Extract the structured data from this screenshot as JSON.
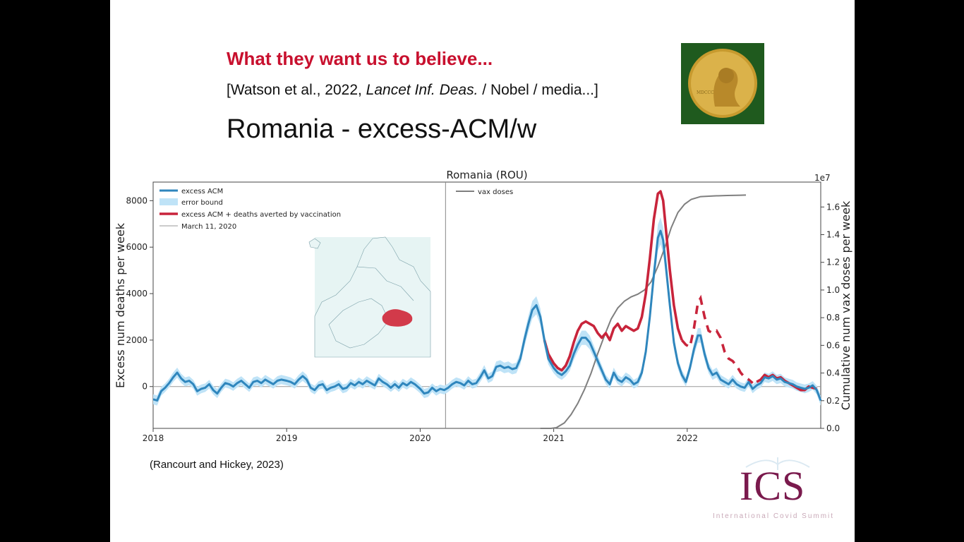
{
  "slide": {
    "headline": "What they want us to believe...",
    "citation_prefix": "[Watson et al., 2022, ",
    "citation_italic": "Lancet Inf. Deas.",
    "citation_suffix": " / Nobel / media...]",
    "title": "Romania  -  excess-ACM/w",
    "source": "(Rancourt and Hickey, 2023)",
    "logo_text": "ICS",
    "logo_tagline": "International Covid Summit"
  },
  "colors": {
    "excess": "#2f86bd",
    "band": "#bfe3f7",
    "averted": "#c8243b",
    "vax": "#7f7f7f",
    "headline": "#c8102e",
    "logo": "#7a1a4d"
  },
  "chart_data": {
    "type": "line",
    "title": "Romania (ROU)",
    "ylabel": "Excess num deaths per week",
    "y2label": "Cumulative num vax doses per week",
    "y2_offset_label": "1e7",
    "x_ticks": [
      "2018",
      "2019",
      "2020",
      "2021",
      "2022"
    ],
    "y_ticks": [
      0,
      2000,
      4000,
      6000,
      8000
    ],
    "y2_ticks": [
      "0.0",
      "0.2",
      "0.4",
      "0.6",
      "0.8",
      "1.0",
      "1.2",
      "1.4",
      "1.6"
    ],
    "xlim": [
      2018.0,
      2023.0
    ],
    "ylim": [
      -1800,
      8800
    ],
    "y2lim": [
      0,
      17800000
    ],
    "vline": 2020.19,
    "legend_left": [
      "excess ACM",
      "error bound",
      "excess ACM + deaths averted by vaccination",
      "March 11, 2020"
    ],
    "legend_right": [
      "vax doses"
    ],
    "series": [
      {
        "name": "excess ACM",
        "axis": "left",
        "points": [
          [
            2018.0,
            -550
          ],
          [
            2018.03,
            -600
          ],
          [
            2018.06,
            -200
          ],
          [
            2018.09,
            -50
          ],
          [
            2018.12,
            150
          ],
          [
            2018.15,
            400
          ],
          [
            2018.18,
            600
          ],
          [
            2018.21,
            350
          ],
          [
            2018.24,
            200
          ],
          [
            2018.27,
            250
          ],
          [
            2018.3,
            100
          ],
          [
            2018.33,
            -200
          ],
          [
            2018.36,
            -100
          ],
          [
            2018.39,
            -50
          ],
          [
            2018.42,
            100
          ],
          [
            2018.45,
            -150
          ],
          [
            2018.48,
            -300
          ],
          [
            2018.51,
            -50
          ],
          [
            2018.54,
            150
          ],
          [
            2018.57,
            100
          ],
          [
            2018.6,
            0
          ],
          [
            2018.63,
            150
          ],
          [
            2018.66,
            250
          ],
          [
            2018.69,
            100
          ],
          [
            2018.72,
            -50
          ],
          [
            2018.75,
            200
          ],
          [
            2018.78,
            250
          ],
          [
            2018.81,
            150
          ],
          [
            2018.84,
            300
          ],
          [
            2018.87,
            200
          ],
          [
            2018.9,
            100
          ],
          [
            2018.93,
            250
          ],
          [
            2018.96,
            300
          ],
          [
            2019.0,
            250
          ],
          [
            2019.03,
            200
          ],
          [
            2019.06,
            100
          ],
          [
            2019.09,
            300
          ],
          [
            2019.12,
            450
          ],
          [
            2019.15,
            300
          ],
          [
            2019.18,
            -50
          ],
          [
            2019.21,
            -150
          ],
          [
            2019.24,
            50
          ],
          [
            2019.27,
            100
          ],
          [
            2019.3,
            -150
          ],
          [
            2019.33,
            -50
          ],
          [
            2019.36,
            0
          ],
          [
            2019.39,
            100
          ],
          [
            2019.42,
            -100
          ],
          [
            2019.45,
            -50
          ],
          [
            2019.48,
            150
          ],
          [
            2019.51,
            50
          ],
          [
            2019.54,
            200
          ],
          [
            2019.57,
            100
          ],
          [
            2019.6,
            250
          ],
          [
            2019.63,
            150
          ],
          [
            2019.66,
            50
          ],
          [
            2019.69,
            350
          ],
          [
            2019.72,
            200
          ],
          [
            2019.75,
            100
          ],
          [
            2019.78,
            -50
          ],
          [
            2019.81,
            100
          ],
          [
            2019.84,
            -50
          ],
          [
            2019.87,
            150
          ],
          [
            2019.9,
            50
          ],
          [
            2019.93,
            200
          ],
          [
            2019.96,
            100
          ],
          [
            2020.0,
            -100
          ],
          [
            2020.03,
            -300
          ],
          [
            2020.06,
            -250
          ],
          [
            2020.09,
            -50
          ],
          [
            2020.12,
            -200
          ],
          [
            2020.15,
            -100
          ],
          [
            2020.18,
            -150
          ],
          [
            2020.21,
            -50
          ],
          [
            2020.24,
            100
          ],
          [
            2020.27,
            200
          ],
          [
            2020.3,
            150
          ],
          [
            2020.33,
            50
          ],
          [
            2020.36,
            250
          ],
          [
            2020.39,
            100
          ],
          [
            2020.42,
            150
          ],
          [
            2020.45,
            400
          ],
          [
            2020.48,
            700
          ],
          [
            2020.51,
            350
          ],
          [
            2020.54,
            450
          ],
          [
            2020.57,
            850
          ],
          [
            2020.6,
            900
          ],
          [
            2020.63,
            800
          ],
          [
            2020.66,
            850
          ],
          [
            2020.69,
            750
          ],
          [
            2020.72,
            800
          ],
          [
            2020.75,
            1200
          ],
          [
            2020.78,
            2000
          ],
          [
            2020.81,
            2700
          ],
          [
            2020.84,
            3300
          ],
          [
            2020.87,
            3500
          ],
          [
            2020.9,
            3000
          ],
          [
            2020.93,
            2000
          ],
          [
            2020.96,
            1200
          ],
          [
            2021.0,
            800
          ],
          [
            2021.03,
            600
          ],
          [
            2021.06,
            500
          ],
          [
            2021.09,
            650
          ],
          [
            2021.12,
            900
          ],
          [
            2021.15,
            1400
          ],
          [
            2021.18,
            1800
          ],
          [
            2021.21,
            2100
          ],
          [
            2021.24,
            2100
          ],
          [
            2021.27,
            1900
          ],
          [
            2021.3,
            1500
          ],
          [
            2021.33,
            1100
          ],
          [
            2021.36,
            700
          ],
          [
            2021.39,
            300
          ],
          [
            2021.42,
            100
          ],
          [
            2021.45,
            600
          ],
          [
            2021.48,
            300
          ],
          [
            2021.51,
            200
          ],
          [
            2021.54,
            400
          ],
          [
            2021.57,
            300
          ],
          [
            2021.6,
            100
          ],
          [
            2021.63,
            200
          ],
          [
            2021.66,
            600
          ],
          [
            2021.69,
            1500
          ],
          [
            2021.72,
            3000
          ],
          [
            2021.75,
            4800
          ],
          [
            2021.78,
            6400
          ],
          [
            2021.8,
            6700
          ],
          [
            2021.82,
            6300
          ],
          [
            2021.84,
            5200
          ],
          [
            2021.87,
            3500
          ],
          [
            2021.9,
            1900
          ],
          [
            2021.93,
            1000
          ],
          [
            2021.96,
            500
          ],
          [
            2021.99,
            200
          ],
          [
            2022.02,
            800
          ],
          [
            2022.05,
            1600
          ],
          [
            2022.08,
            2200
          ],
          [
            2022.1,
            2200
          ],
          [
            2022.13,
            1400
          ],
          [
            2022.16,
            800
          ],
          [
            2022.19,
            500
          ],
          [
            2022.22,
            600
          ],
          [
            2022.25,
            300
          ],
          [
            2022.28,
            200
          ],
          [
            2022.31,
            100
          ],
          [
            2022.34,
            300
          ],
          [
            2022.37,
            100
          ],
          [
            2022.4,
            0
          ],
          [
            2022.43,
            -50
          ],
          [
            2022.46,
            200
          ],
          [
            2022.49,
            -100
          ],
          [
            2022.52,
            50
          ],
          [
            2022.55,
            150
          ],
          [
            2022.58,
            400
          ],
          [
            2022.61,
            350
          ],
          [
            2022.64,
            450
          ],
          [
            2022.67,
            300
          ],
          [
            2022.7,
            350
          ],
          [
            2022.73,
            200
          ],
          [
            2022.76,
            150
          ],
          [
            2022.79,
            100
          ],
          [
            2022.82,
            0
          ],
          [
            2022.85,
            -50
          ],
          [
            2022.88,
            -100
          ],
          [
            2022.91,
            -50
          ],
          [
            2022.94,
            50
          ],
          [
            2022.97,
            -150
          ],
          [
            2023.0,
            -600
          ]
        ]
      },
      {
        "name": "excess ACM + deaths averted by vaccination",
        "axis": "left",
        "points": [
          [
            2020.93,
            2000
          ],
          [
            2020.96,
            1400
          ],
          [
            2021.0,
            1000
          ],
          [
            2021.03,
            800
          ],
          [
            2021.06,
            700
          ],
          [
            2021.09,
            900
          ],
          [
            2021.12,
            1300
          ],
          [
            2021.15,
            1900
          ],
          [
            2021.18,
            2400
          ],
          [
            2021.21,
            2700
          ],
          [
            2021.24,
            2800
          ],
          [
            2021.27,
            2700
          ],
          [
            2021.3,
            2600
          ],
          [
            2021.33,
            2300
          ],
          [
            2021.36,
            2100
          ],
          [
            2021.39,
            2300
          ],
          [
            2021.42,
            2000
          ],
          [
            2021.45,
            2500
          ],
          [
            2021.48,
            2700
          ],
          [
            2021.51,
            2400
          ],
          [
            2021.54,
            2600
          ],
          [
            2021.57,
            2500
          ],
          [
            2021.6,
            2400
          ],
          [
            2021.63,
            2500
          ],
          [
            2021.66,
            3000
          ],
          [
            2021.69,
            4000
          ],
          [
            2021.72,
            5500
          ],
          [
            2021.75,
            7200
          ],
          [
            2021.78,
            8300
          ],
          [
            2021.8,
            8400
          ],
          [
            2021.82,
            8000
          ],
          [
            2021.84,
            6800
          ],
          [
            2021.87,
            5000
          ],
          [
            2021.9,
            3500
          ],
          [
            2021.93,
            2500
          ],
          [
            2021.96,
            2000
          ],
          [
            2021.99,
            1800
          ],
          [
            2022.02,
            1700
          ],
          [
            2022.05,
            2500
          ],
          [
            2022.08,
            3600
          ],
          [
            2022.1,
            3800
          ],
          [
            2022.13,
            3000
          ],
          [
            2022.16,
            2400
          ],
          [
            2022.19,
            2300
          ],
          [
            2022.22,
            2400
          ],
          [
            2022.25,
            2100
          ],
          [
            2022.28,
            1500
          ],
          [
            2022.31,
            1200
          ],
          [
            2022.34,
            1100
          ],
          [
            2022.37,
            900
          ],
          [
            2022.4,
            600
          ],
          [
            2022.43,
            400
          ],
          [
            2022.46,
            300
          ],
          [
            2022.49,
            150
          ],
          [
            2022.52,
            200
          ],
          [
            2022.55,
            300
          ],
          [
            2022.58,
            500
          ],
          [
            2022.61,
            400
          ],
          [
            2022.64,
            500
          ],
          [
            2022.67,
            350
          ],
          [
            2022.7,
            400
          ],
          [
            2022.73,
            250
          ],
          [
            2022.76,
            150
          ],
          [
            2022.79,
            50
          ],
          [
            2022.82,
            -50
          ],
          [
            2022.85,
            -150
          ],
          [
            2022.88,
            -150
          ],
          [
            2022.91,
            0
          ],
          [
            2022.94,
            -50
          ],
          [
            2022.97,
            -100
          ]
        ]
      },
      {
        "name": "vax doses",
        "axis": "right",
        "points": [
          [
            2020.9,
            0
          ],
          [
            2020.98,
            0
          ],
          [
            2021.02,
            50000
          ],
          [
            2021.08,
            400000
          ],
          [
            2021.13,
            1000000
          ],
          [
            2021.18,
            1800000
          ],
          [
            2021.23,
            2800000
          ],
          [
            2021.28,
            4000000
          ],
          [
            2021.33,
            5400000
          ],
          [
            2021.38,
            6700000
          ],
          [
            2021.43,
            7900000
          ],
          [
            2021.48,
            8700000
          ],
          [
            2021.53,
            9200000
          ],
          [
            2021.58,
            9500000
          ],
          [
            2021.63,
            9700000
          ],
          [
            2021.68,
            10000000
          ],
          [
            2021.73,
            10600000
          ],
          [
            2021.78,
            11700000
          ],
          [
            2021.83,
            13000000
          ],
          [
            2021.88,
            14500000
          ],
          [
            2021.93,
            15600000
          ],
          [
            2021.98,
            16200000
          ],
          [
            2022.03,
            16550000
          ],
          [
            2022.1,
            16750000
          ],
          [
            2022.2,
            16800000
          ],
          [
            2022.3,
            16830000
          ],
          [
            2022.4,
            16850000
          ],
          [
            2022.44,
            16860000
          ]
        ]
      }
    ]
  }
}
